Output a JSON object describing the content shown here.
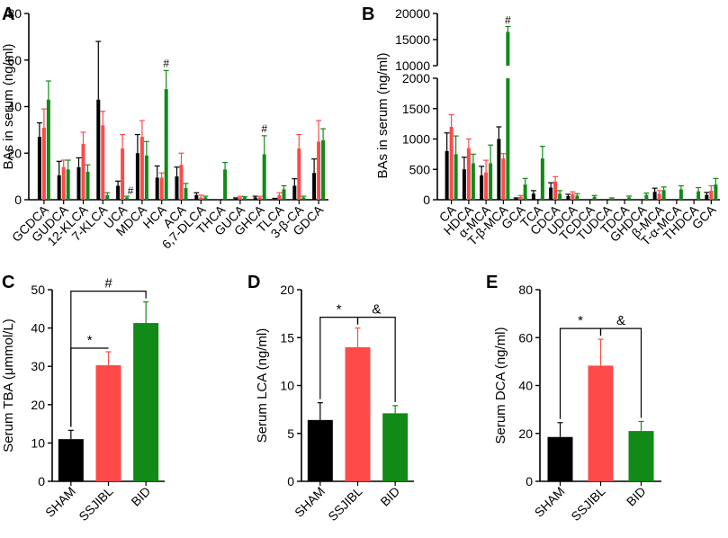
{
  "colors": {
    "sham": "#000000",
    "ssjibl": "#ff4a4a",
    "bid": "#118a17"
  },
  "chart_data": [
    {
      "panel": "A",
      "type": "bar",
      "ylabel": "BAs in serum (ng/ml)",
      "ylim": [
        0,
        80
      ],
      "yticks": [
        "0",
        "20",
        "40",
        "60",
        "80"
      ],
      "groups": [
        "SHAM",
        "SSJIBL",
        "BID"
      ],
      "categories": [
        "GCDCA",
        "GUDCA",
        "12-KLCA",
        "7-KLCA",
        "UCA",
        "MDCA",
        "HCA",
        "ACA",
        "6,7-DLCA",
        "THCA",
        "GUCA",
        "GHCA",
        "TLCA",
        "3-β-CA",
        "GDCA"
      ],
      "series": [
        {
          "name": "SHAM",
          "values": [
            27,
            10.5,
            14,
            43,
            6,
            20,
            9.5,
            10,
            2,
            0,
            0.5,
            1,
            0.3,
            6,
            11.5
          ],
          "errors": [
            6,
            6,
            4,
            25,
            2,
            8,
            5,
            4,
            1,
            0,
            0.3,
            0.5,
            0.3,
            3,
            6
          ]
        },
        {
          "name": "SSJIBL",
          "values": [
            31,
            14,
            24,
            32,
            22,
            27,
            9.5,
            15,
            1,
            0,
            1,
            1,
            2,
            22,
            25
          ],
          "errors": [
            8,
            3,
            5,
            6,
            6,
            7,
            2,
            5,
            1,
            0,
            0.5,
            0.5,
            1,
            6,
            9
          ]
        },
        {
          "name": "BID",
          "values": [
            43,
            13,
            12,
            2,
            1,
            19,
            47.5,
            5,
            1,
            13,
            1,
            19.5,
            4.5,
            1,
            25.5
          ],
          "errors": [
            8,
            4,
            3,
            1,
            0.5,
            6,
            8,
            2,
            0.5,
            3,
            0.3,
            8,
            1.5,
            0.5,
            5
          ]
        }
      ],
      "annotations": [
        {
          "text": "#",
          "category": "UCA"
        },
        {
          "text": "#",
          "category": "HCA"
        },
        {
          "text": "#",
          "category": "GHCA"
        }
      ]
    },
    {
      "panel": "B",
      "type": "bar",
      "ylabel": "BAs in serum (ng/ml)",
      "axis_break": {
        "lower": [
          0,
          2000
        ],
        "upper": [
          10000,
          20000
        ]
      },
      "yticks": [
        "0",
        "500",
        "1000",
        "1500",
        "2000",
        "10000",
        "15000",
        "20000"
      ],
      "groups": [
        "SHAM",
        "SSJIBL",
        "BID"
      ],
      "categories": [
        "CA",
        "HDCA",
        "α-MCA",
        "T-β-MCA",
        "GCA",
        "TCA",
        "CDCA",
        "UDCA",
        "TCDCA",
        "TUDCA",
        "TDCA",
        "GHDCA",
        "β-MCA",
        "T-α-MCA",
        "THDCA",
        "GCA"
      ],
      "series": [
        {
          "name": "SHAM",
          "values": [
            800,
            500,
            400,
            1000,
            20,
            100,
            200,
            60,
            0,
            0,
            0,
            0,
            130,
            0,
            0,
            80
          ],
          "errors": [
            300,
            200,
            150,
            200,
            10,
            50,
            80,
            30,
            0,
            0,
            0,
            0,
            60,
            0,
            0,
            40
          ]
        },
        {
          "name": "SSJIBL",
          "values": [
            1200,
            850,
            450,
            680,
            50,
            0,
            300,
            90,
            0,
            0,
            0,
            0,
            100,
            0,
            0,
            150
          ],
          "errors": [
            200,
            150,
            200,
            80,
            20,
            0,
            80,
            40,
            0,
            0,
            0,
            0,
            50,
            0,
            0,
            80
          ]
        },
        {
          "name": "BID",
          "values": [
            750,
            600,
            600,
            16500,
            250,
            680,
            100,
            70,
            50,
            20,
            40,
            80,
            160,
            170,
            140,
            250
          ],
          "errors": [
            300,
            150,
            300,
            1000,
            100,
            200,
            50,
            30,
            20,
            10,
            20,
            30,
            50,
            60,
            60,
            100
          ]
        }
      ],
      "annotations": [
        {
          "text": "#",
          "category": "T-β-MCA"
        }
      ]
    },
    {
      "panel": "C",
      "type": "bar",
      "ylabel": "Serum TBA (μmmol/L)",
      "ylim": [
        0,
        50
      ],
      "yticks": [
        "0",
        "10",
        "20",
        "30",
        "40",
        "50"
      ],
      "categories": [
        "SHAM",
        "SSJIBL",
        "BID"
      ],
      "values": [
        11,
        30.3,
        41.3
      ],
      "errors": [
        2.3,
        3.5,
        5.5
      ],
      "comparisons": [
        {
          "from": "SHAM",
          "to": "SSJIBL",
          "label": "*"
        },
        {
          "from": "SHAM",
          "to": "BID",
          "label": "#"
        }
      ]
    },
    {
      "panel": "D",
      "type": "bar",
      "ylabel": "Serum LCA (ng/ml)",
      "ylim": [
        0,
        20
      ],
      "yticks": [
        "0",
        "5",
        "10",
        "15",
        "20"
      ],
      "categories": [
        "SHAM",
        "SSJIBL",
        "BID"
      ],
      "values": [
        6.4,
        14.0,
        7.1
      ],
      "errors": [
        1.8,
        2.0,
        0.8
      ],
      "comparisons": [
        {
          "from": "SHAM",
          "to": "SSJIBL",
          "label": "*"
        },
        {
          "from": "SSJIBL",
          "to": "BID",
          "label": "&"
        }
      ]
    },
    {
      "panel": "E",
      "type": "bar",
      "ylabel": "Serum DCA (ng/ml)",
      "ylim": [
        0,
        80
      ],
      "yticks": [
        "0",
        "20",
        "40",
        "60",
        "80"
      ],
      "categories": [
        "SHAM",
        "SSJIBL",
        "BID"
      ],
      "values": [
        18.5,
        48.3,
        21
      ],
      "errors": [
        6,
        11,
        4
      ],
      "comparisons": [
        {
          "from": "SHAM",
          "to": "SSJIBL",
          "label": "*"
        },
        {
          "from": "SSJIBL",
          "to": "BID",
          "label": "&"
        }
      ]
    }
  ]
}
